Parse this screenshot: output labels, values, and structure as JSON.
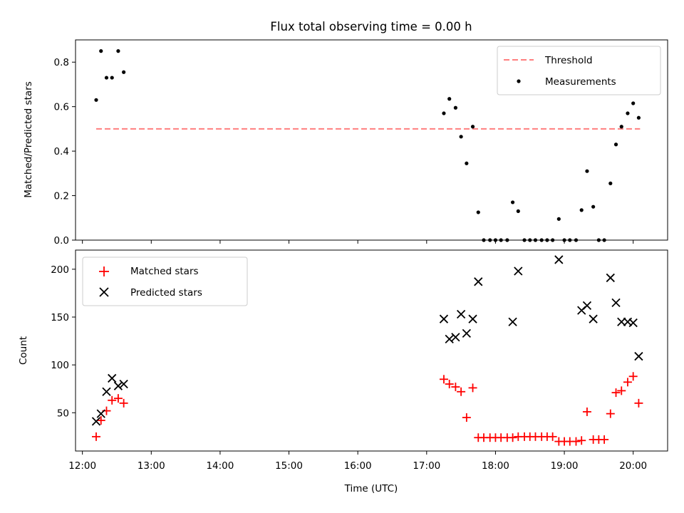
{
  "chart_data": [
    {
      "type": "scatter",
      "title": "Flux total observing time = 0.00 h",
      "xlabel": "",
      "ylabel": "Matched/Predicted stars",
      "xlim": [
        11.9,
        20.5
      ],
      "ylim": [
        0,
        0.9
      ],
      "yticks": [
        "0.0",
        "0.2",
        "0.4",
        "0.6",
        "0.8"
      ],
      "ytick_values": [
        0,
        0.2,
        0.4,
        0.6,
        0.8
      ],
      "legend_position": "upper right",
      "threshold": {
        "name": "Threshold",
        "value": 0.5,
        "x_range": [
          12.2,
          20.1
        ],
        "color": "#ff7f7f",
        "style": "dashed"
      },
      "series": [
        {
          "name": "Measurements",
          "color": "#000000",
          "marker": "dot",
          "x": [
            12.2,
            12.27,
            12.35,
            12.43,
            12.52,
            12.6,
            17.25,
            17.33,
            17.42,
            17.5,
            17.58,
            17.67,
            17.75,
            17.83,
            17.92,
            18.0,
            18.08,
            18.17,
            18.25,
            18.33,
            18.42,
            18.5,
            18.58,
            18.67,
            18.75,
            18.83,
            18.92,
            19.0,
            19.08,
            19.17,
            19.25,
            19.33,
            19.42,
            19.5,
            19.58,
            19.67,
            19.75,
            19.83,
            19.92,
            20.0,
            20.08
          ],
          "y": [
            0.63,
            0.85,
            0.73,
            0.73,
            0.85,
            0.755,
            0.57,
            0.635,
            0.595,
            0.465,
            0.345,
            0.51,
            0.125,
            0.0,
            0.0,
            0.0,
            0.0,
            0.0,
            0.17,
            0.13,
            0.0,
            0.0,
            0.0,
            0.0,
            0.0,
            0.0,
            0.095,
            0.0,
            0.0,
            0.0,
            0.135,
            0.31,
            0.15,
            0.0,
            0.0,
            0.255,
            0.43,
            0.51,
            0.57,
            0.615,
            0.55
          ]
        }
      ]
    },
    {
      "type": "scatter",
      "title": "",
      "xlabel": "Time (UTC)",
      "ylabel": "Count",
      "xlim": [
        11.9,
        20.5
      ],
      "ylim": [
        10,
        220
      ],
      "xticks": [
        "12:00",
        "13:00",
        "14:00",
        "15:00",
        "16:00",
        "17:00",
        "18:00",
        "19:00",
        "20:00"
      ],
      "xtick_values": [
        12,
        13,
        14,
        15,
        16,
        17,
        18,
        19,
        20
      ],
      "yticks": [
        "50",
        "100",
        "150",
        "200"
      ],
      "ytick_values": [
        50,
        100,
        150,
        200
      ],
      "legend_position": "upper left",
      "series": [
        {
          "name": "Matched stars",
          "color": "#ff0000",
          "marker": "plus",
          "x": [
            12.2,
            12.27,
            12.35,
            12.43,
            12.52,
            12.6,
            17.25,
            17.33,
            17.42,
            17.5,
            17.58,
            17.67,
            17.75,
            17.83,
            17.92,
            18.0,
            18.08,
            18.17,
            18.25,
            18.33,
            18.42,
            18.5,
            18.58,
            18.67,
            18.75,
            18.83,
            18.92,
            19.0,
            19.08,
            19.17,
            19.25,
            19.33,
            19.42,
            19.5,
            19.58,
            19.67,
            19.75,
            19.83,
            19.92,
            20.0,
            20.08
          ],
          "y": [
            25,
            42,
            52,
            63,
            65,
            60,
            85,
            80,
            77,
            72,
            45,
            76,
            24,
            24,
            24,
            24,
            24,
            24,
            24,
            25,
            25,
            25,
            25,
            25,
            25,
            25,
            20,
            20,
            20,
            20,
            21,
            51,
            22,
            22,
            22,
            49,
            71,
            73,
            82,
            88,
            60
          ]
        },
        {
          "name": "Predicted stars",
          "color": "#000000",
          "marker": "x",
          "x": [
            12.2,
            12.27,
            12.35,
            12.43,
            12.52,
            12.6,
            17.25,
            17.33,
            17.42,
            17.5,
            17.58,
            17.67,
            17.75,
            18.25,
            18.33,
            18.92,
            19.25,
            19.33,
            19.42,
            19.67,
            19.75,
            19.83,
            19.92,
            20.0,
            20.08
          ],
          "y": [
            41,
            49,
            72,
            86,
            78,
            80,
            148,
            127,
            129,
            153,
            133,
            148,
            187,
            145,
            198,
            210,
            157,
            162,
            148,
            191,
            165,
            145,
            145,
            144,
            109
          ]
        }
      ]
    }
  ]
}
